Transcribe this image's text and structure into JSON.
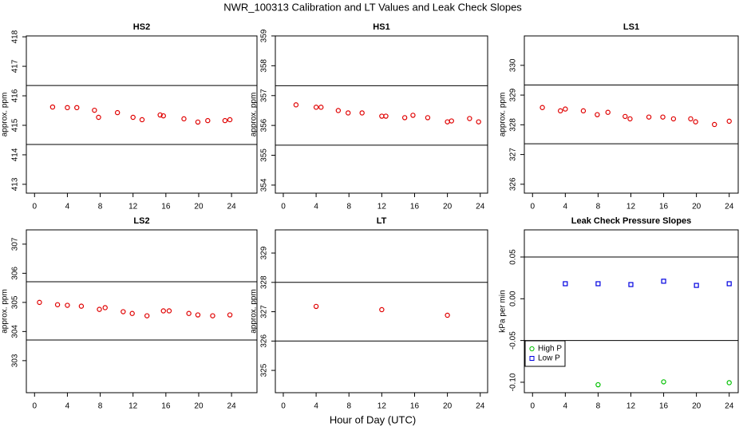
{
  "title": "NWR_100313  Calibration and LT Values and Leak Check Slopes",
  "xlabel": "Hour of Day (UTC)",
  "chart_data": [
    {
      "type": "scatter",
      "title": "HS2",
      "ylabel": "approx. ppm",
      "xlim": [
        -1,
        27.1
      ],
      "ylim": [
        412.7,
        418.03
      ],
      "xticks": [
        0,
        4,
        8,
        12,
        16,
        20,
        24
      ],
      "yticks": [
        413,
        414,
        415,
        416,
        417,
        418
      ],
      "hlines": [
        416.35,
        414.35
      ],
      "series": [
        {
          "color": "#e00000",
          "marker": "circle",
          "x": [
            2.2,
            4.0,
            5.15,
            7.3,
            7.8,
            10.1,
            12.0,
            13.1,
            15.3,
            15.7,
            18.2,
            19.9,
            21.1,
            23.2,
            23.8
          ],
          "values": [
            415.62,
            415.6,
            415.6,
            415.51,
            415.27,
            415.43,
            415.27,
            415.19,
            415.35,
            415.32,
            415.22,
            415.11,
            415.16,
            415.16,
            415.19
          ]
        }
      ]
    },
    {
      "type": "scatter",
      "title": "HS1",
      "ylabel": "approx. ppm",
      "xlim": [
        -0.97,
        24.9
      ],
      "ylim": [
        353.73,
        359
      ],
      "xticks": [
        0,
        4,
        8,
        12,
        16,
        20,
        24
      ],
      "yticks": [
        354,
        355,
        356,
        357,
        358,
        359
      ],
      "hlines": [
        357.33,
        355.34
      ],
      "series": [
        {
          "color": "#e00000",
          "marker": "circle",
          "x": [
            1.55,
            4.0,
            4.6,
            6.7,
            7.9,
            9.6,
            12.0,
            12.5,
            14.8,
            15.8,
            17.6,
            20.0,
            20.5,
            22.7,
            23.8
          ],
          "values": [
            356.69,
            356.61,
            356.61,
            356.5,
            356.42,
            356.42,
            356.31,
            356.31,
            356.26,
            356.34,
            356.26,
            356.12,
            356.15,
            356.23,
            356.12
          ]
        }
      ]
    },
    {
      "type": "scatter",
      "title": "LS1",
      "ylabel": "approx. ppm",
      "xlim": [
        -1,
        25.1
      ],
      "ylim": [
        325.7,
        330.99
      ],
      "xticks": [
        0,
        4,
        8,
        12,
        16,
        20,
        24
      ],
      "yticks": [
        326,
        327,
        328,
        329,
        330
      ],
      "hlines": [
        329.34,
        327.36
      ],
      "series": [
        {
          "color": "#e00000",
          "marker": "circle",
          "x": [
            1.2,
            3.4,
            4.0,
            6.2,
            7.9,
            9.2,
            11.3,
            11.9,
            14.2,
            15.9,
            17.2,
            19.3,
            19.9,
            22.2,
            24.0
          ],
          "values": [
            328.58,
            328.47,
            328.53,
            328.47,
            328.34,
            328.42,
            328.28,
            328.2,
            328.26,
            328.26,
            328.2,
            328.2,
            328.1,
            328.01,
            328.12
          ]
        }
      ]
    },
    {
      "type": "scatter",
      "title": "LS2",
      "ylabel": "approx. ppm",
      "xlim": [
        -1,
        27.1
      ],
      "ylim": [
        301.9,
        307.49
      ],
      "xticks": [
        0,
        4,
        8,
        12,
        16,
        20,
        24
      ],
      "yticks": [
        303,
        304,
        305,
        306,
        307
      ],
      "hlines": [
        305.71,
        303.71
      ],
      "series": [
        {
          "color": "#e00000",
          "marker": "circle",
          "x": [
            0.6,
            2.8,
            4.0,
            5.7,
            7.9,
            8.6,
            10.8,
            11.9,
            13.7,
            15.7,
            16.4,
            18.8,
            19.9,
            21.7,
            23.8
          ],
          "values": [
            305.0,
            304.92,
            304.9,
            304.87,
            304.76,
            304.82,
            304.68,
            304.62,
            304.54,
            304.71,
            304.71,
            304.62,
            304.57,
            304.54,
            304.57
          ]
        }
      ]
    },
    {
      "type": "scatter",
      "title": "LT",
      "ylabel": "approx. ppm",
      "xlim": [
        -0.97,
        24.9
      ],
      "ylim": [
        324.24,
        329.79
      ],
      "xticks": [
        0,
        4,
        8,
        12,
        16,
        20,
        24
      ],
      "yticks": [
        325,
        326,
        327,
        328,
        329
      ],
      "hlines": [
        328,
        326
      ],
      "series": [
        {
          "color": "#e00000",
          "marker": "circle",
          "x": [
            4.0,
            12.0,
            20.0
          ],
          "values": [
            327.18,
            327.07,
            326.88
          ]
        }
      ]
    },
    {
      "type": "scatter",
      "title": "Leak Check Pressure Slopes",
      "ylabel": "kPa per min",
      "xlim": [
        -1,
        25.1
      ],
      "ylim": [
        -0.1125,
        0.0825
      ],
      "xticks": [
        0,
        4,
        8,
        12,
        16,
        20,
        24
      ],
      "yticks": [
        {
          "value": -0.1,
          "label": "-0.10"
        },
        -0.05,
        {
          "value": 0,
          "label": "0.00"
        },
        0.05
      ],
      "hlines": [
        0.05,
        -0.05
      ],
      "legend": "left",
      "series": [
        {
          "name": "High P",
          "color": "#00c000",
          "marker": "circle",
          "x": [
            8,
            16,
            24
          ],
          "values": [
            -0.103,
            -0.0995,
            -0.1005
          ]
        },
        {
          "name": "Low P",
          "color": "#0000e0",
          "marker": "square",
          "x": [
            4,
            8,
            12,
            16,
            20,
            24
          ],
          "values": [
            0.018,
            0.018,
            0.017,
            0.021,
            0.016,
            0.018
          ]
        }
      ]
    }
  ]
}
